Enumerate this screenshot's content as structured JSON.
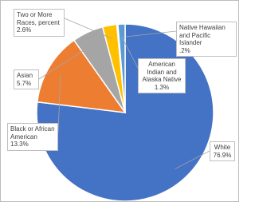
{
  "chart_data": {
    "type": "pie",
    "categories": [
      "White",
      "Black or African American",
      "Asian",
      "Two or More Races, percent",
      "Native Hawaiian and Pacific Islander",
      "American Indian and Alaska Native"
    ],
    "values": [
      76.9,
      13.3,
      5.7,
      2.6,
      0.2,
      1.3
    ],
    "value_labels": [
      "76.9%",
      "13.3%",
      "5.7%",
      "2.6%",
      ".2%",
      "1.3%"
    ],
    "colors": [
      "#4472c4",
      "#ed7d31",
      "#a5a5a5",
      "#ffc000",
      "#264478",
      "#5b9bd5"
    ]
  }
}
